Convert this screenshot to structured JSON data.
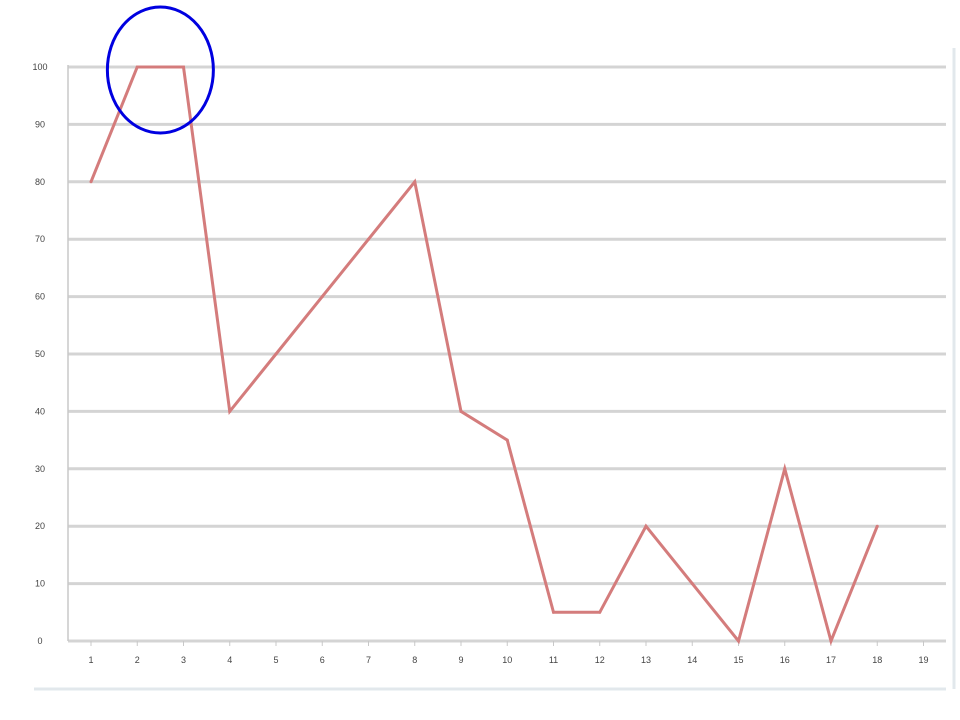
{
  "chart_data": {
    "type": "line",
    "x": [
      1,
      2,
      3,
      4,
      5,
      6,
      7,
      8,
      9,
      10,
      11,
      12,
      13,
      14,
      15,
      16,
      17,
      18
    ],
    "categories": [
      "1",
      "2",
      "3",
      "4",
      "5",
      "6",
      "7",
      "8",
      "9",
      "10",
      "11",
      "12",
      "13",
      "14",
      "15",
      "16",
      "17",
      "18",
      "19"
    ],
    "series": [
      {
        "values": [
          80,
          100,
          100,
          40,
          50,
          60,
          70,
          80,
          40,
          35,
          5,
          5,
          20,
          10,
          0,
          30,
          0,
          20
        ],
        "color": "#d47c7c"
      }
    ],
    "yticks": [
      "0",
      "10",
      "20",
      "30",
      "40",
      "50",
      "60",
      "70",
      "80",
      "90",
      "100"
    ],
    "ylim": [
      0,
      100
    ],
    "grid": true,
    "legend": "none",
    "annotation": {
      "shape": "circle",
      "color": "#0000e0",
      "highlights_x": [
        2,
        3
      ]
    }
  },
  "colors": {
    "gridline": "#d4d4d4",
    "axis": "#c8c8c8",
    "frame": "#e2e8ec"
  }
}
